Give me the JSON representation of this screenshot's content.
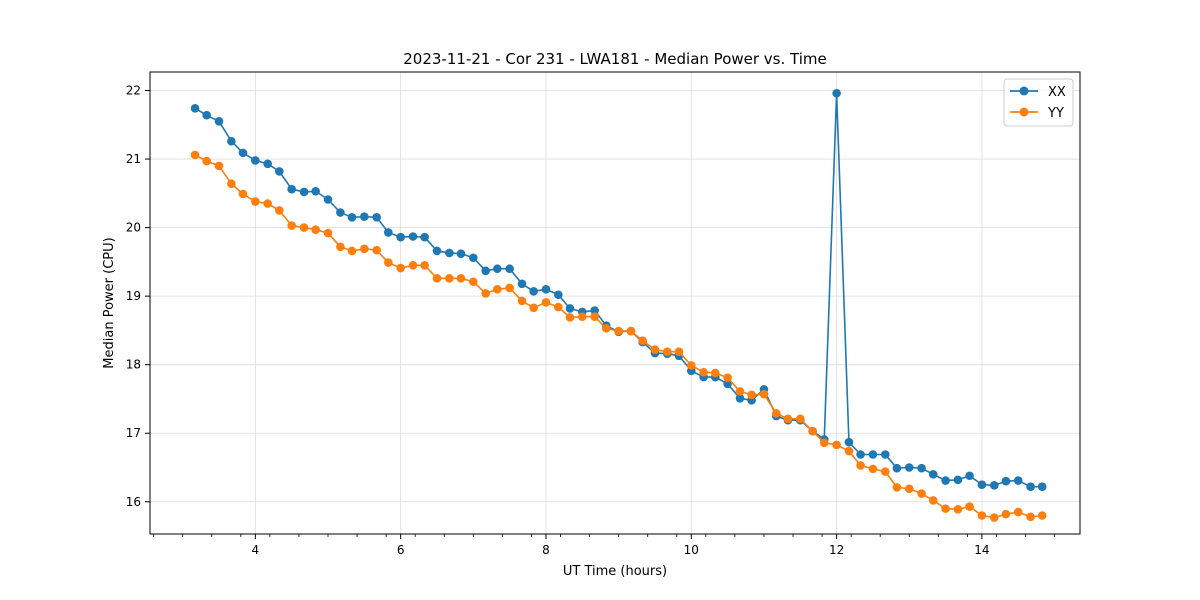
{
  "chart_data": {
    "type": "line",
    "title": "2023-11-21 - Cor 231 - LWA181 - Median Power vs. Time",
    "xlabel": "UT Time (hours)",
    "ylabel": "Median Power (CPU)",
    "xlim": [
      2.55,
      15.35
    ],
    "ylim": [
      15.53,
      22.27
    ],
    "xticks": [
      4,
      6,
      8,
      10,
      12,
      14
    ],
    "xtick_labels": [
      "4",
      "6",
      "8",
      "10",
      "12",
      "14"
    ],
    "yticks": [
      16,
      17,
      18,
      19,
      20,
      21,
      22
    ],
    "ytick_labels": [
      "16",
      "17",
      "18",
      "19",
      "20",
      "21",
      "22"
    ],
    "grid": true,
    "legend_position": "top-right",
    "x": [
      3.17,
      3.33,
      3.5,
      3.67,
      3.83,
      4.0,
      4.17,
      4.33,
      4.5,
      4.67,
      4.83,
      5.0,
      5.17,
      5.33,
      5.5,
      5.67,
      5.83,
      6.0,
      6.17,
      6.33,
      6.5,
      6.67,
      6.83,
      7.0,
      7.17,
      7.33,
      7.5,
      7.67,
      7.83,
      8.0,
      8.17,
      8.33,
      8.5,
      8.67,
      8.83,
      9.0,
      9.17,
      9.33,
      9.5,
      9.67,
      9.83,
      10.0,
      10.17,
      10.33,
      10.5,
      10.67,
      10.83,
      11.0,
      11.17,
      11.33,
      11.5,
      11.67,
      11.83,
      12.0,
      12.17,
      12.33,
      12.5,
      12.67,
      12.83,
      13.0,
      13.17,
      13.33,
      13.5,
      13.67,
      13.83,
      14.0,
      14.17,
      14.33,
      14.5,
      14.67,
      14.83
    ],
    "series": [
      {
        "name": "XX",
        "color": "#1f77b4",
        "values": [
          21.74,
          21.64,
          21.55,
          21.26,
          21.09,
          20.98,
          20.93,
          20.82,
          20.56,
          20.52,
          20.53,
          20.41,
          20.22,
          20.15,
          20.16,
          20.15,
          19.93,
          19.86,
          19.87,
          19.86,
          19.66,
          19.63,
          19.62,
          19.56,
          19.37,
          19.4,
          19.4,
          19.18,
          19.07,
          19.1,
          19.02,
          18.82,
          18.77,
          18.79,
          18.57,
          18.48,
          18.49,
          18.33,
          18.17,
          18.16,
          18.13,
          17.91,
          17.82,
          17.82,
          17.72,
          17.51,
          17.48,
          17.64,
          17.25,
          17.19,
          17.19,
          17.03,
          16.91,
          21.96,
          16.87,
          16.69,
          16.69,
          16.69,
          16.49,
          16.5,
          16.49,
          16.4,
          16.31,
          16.32,
          16.38,
          16.25,
          16.24,
          16.3,
          16.31,
          16.22,
          16.22
        ]
      },
      {
        "name": "YY",
        "color": "#ff7f0e",
        "values": [
          21.06,
          20.97,
          20.9,
          20.64,
          20.49,
          20.38,
          20.35,
          20.25,
          20.03,
          20.0,
          19.97,
          19.92,
          19.72,
          19.66,
          19.69,
          19.67,
          19.49,
          19.41,
          19.45,
          19.45,
          19.26,
          19.26,
          19.26,
          19.21,
          19.04,
          19.1,
          19.12,
          18.93,
          18.83,
          18.91,
          18.84,
          18.69,
          18.7,
          18.7,
          18.53,
          18.49,
          18.49,
          18.35,
          18.22,
          18.19,
          18.19,
          17.99,
          17.89,
          17.88,
          17.81,
          17.61,
          17.56,
          17.57,
          17.29,
          17.21,
          17.21,
          17.03,
          16.86,
          16.83,
          16.74,
          16.53,
          16.48,
          16.44,
          16.21,
          16.19,
          16.12,
          16.02,
          15.9,
          15.89,
          15.93,
          15.8,
          15.77,
          15.82,
          15.85,
          15.78,
          15.8
        ]
      }
    ]
  }
}
